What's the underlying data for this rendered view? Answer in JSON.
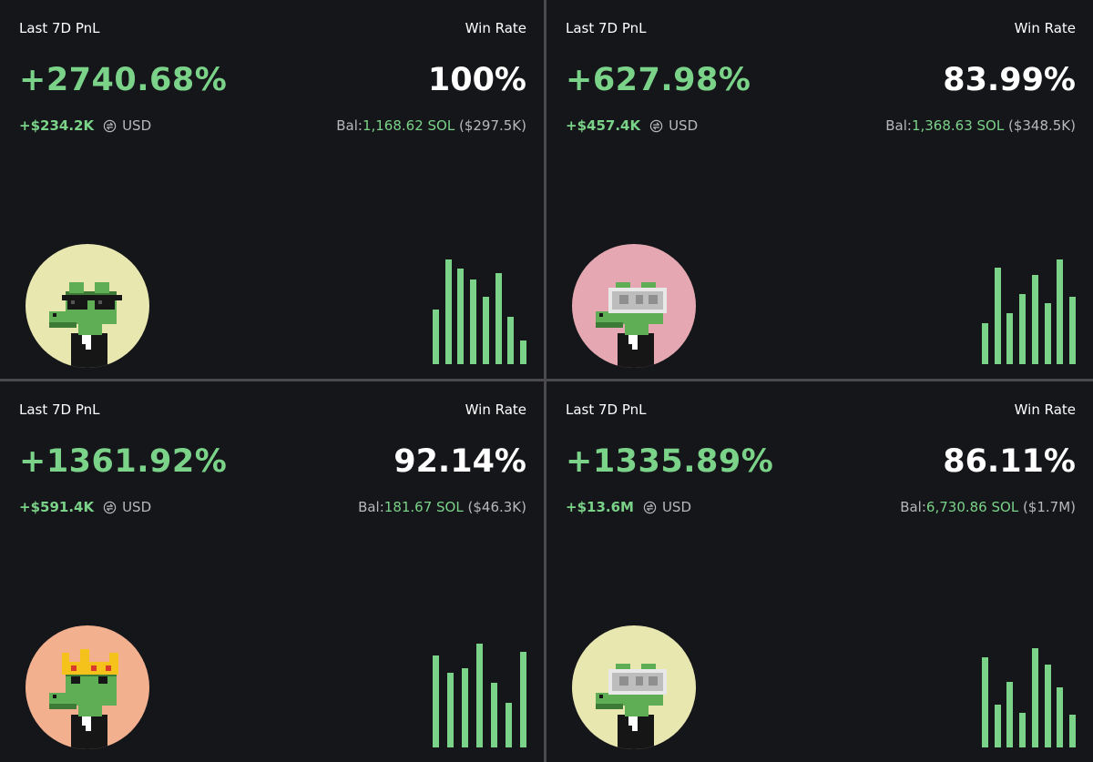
{
  "cards": [
    {
      "pnl_label": "Last 7D PnL",
      "winrate_label": "Win Rate",
      "pnl_percent": "+2740.68%",
      "win_rate": "100%",
      "pnl_usd": "+$234.2K",
      "currency": "USD",
      "bal_label": "Bal:",
      "bal_sol": "1,168.62 SOL",
      "bal_usd": "($297.5K)",
      "avatar_bg": "#e9e7b0",
      "avatar_accessory": "sunglasses",
      "icon": "swap-icon",
      "chart_data": {
        "type": "bar",
        "values": [
          0.52,
          1.0,
          0.91,
          0.81,
          0.64,
          0.87,
          0.45,
          0.23
        ]
      }
    },
    {
      "pnl_label": "Last 7D PnL",
      "winrate_label": "Win Rate",
      "pnl_percent": "+627.98%",
      "win_rate": "83.99%",
      "pnl_usd": "+$457.4K",
      "currency": "USD",
      "bal_label": "Bal:",
      "bal_sol": "1,368.63 SOL",
      "bal_usd": "($348.5K)",
      "avatar_bg": "#e5a7b2",
      "avatar_accessory": "vr-goggles",
      "icon": "swap-icon",
      "chart_data": {
        "type": "bar",
        "values": [
          0.39,
          0.92,
          0.49,
          0.67,
          0.85,
          0.58,
          1.0,
          0.64
        ]
      }
    },
    {
      "pnl_label": "Last 7D PnL",
      "winrate_label": "Win Rate",
      "pnl_percent": "+1361.92%",
      "win_rate": "92.14%",
      "pnl_usd": "+$591.4K",
      "currency": "USD",
      "bal_label": "Bal:",
      "bal_sol": "181.67 SOL",
      "bal_usd": "($46.3K)",
      "avatar_bg": "#f3b08e",
      "avatar_accessory": "crown",
      "icon": "swap-icon",
      "chart_data": {
        "type": "bar",
        "values": [
          0.88,
          0.71,
          0.76,
          0.99,
          0.62,
          0.43,
          0.91
        ]
      }
    },
    {
      "pnl_label": "Last 7D PnL",
      "winrate_label": "Win Rate",
      "pnl_percent": "+1335.89%",
      "win_rate": "86.11%",
      "pnl_usd": "+$13.6M",
      "currency": "USD",
      "bal_label": "Bal:",
      "bal_sol": "6,730.86 SOL",
      "bal_usd": "($1.7M)",
      "avatar_bg": "#e9e7b0",
      "avatar_accessory": "vr-goggles",
      "icon": "swap-icon",
      "chart_data": {
        "type": "bar",
        "values": [
          0.86,
          0.41,
          0.63,
          0.33,
          0.95,
          0.79,
          0.57,
          0.31
        ]
      }
    }
  ]
}
